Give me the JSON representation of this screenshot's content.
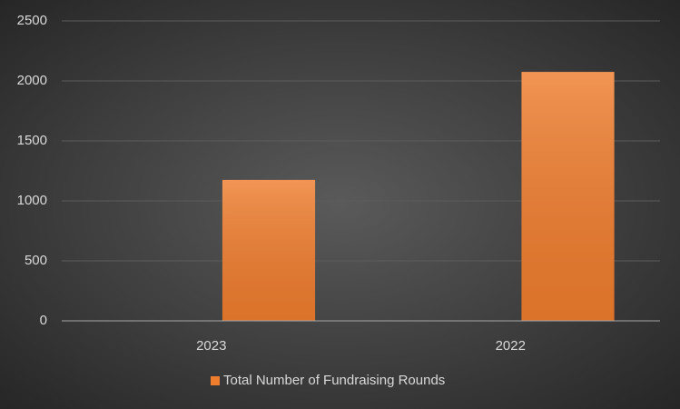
{
  "chart_data": {
    "type": "bar",
    "categories": [
      "2023",
      "2022"
    ],
    "series": [
      {
        "name": "Total Number of Fundraising Rounds",
        "color": "#ef7d2e",
        "values": [
          1175,
          2075
        ]
      }
    ],
    "ylim": [
      0,
      2500
    ],
    "yticks": [
      0,
      500,
      1000,
      1500,
      2000,
      2500
    ],
    "grid": true,
    "legend": "bottom"
  }
}
